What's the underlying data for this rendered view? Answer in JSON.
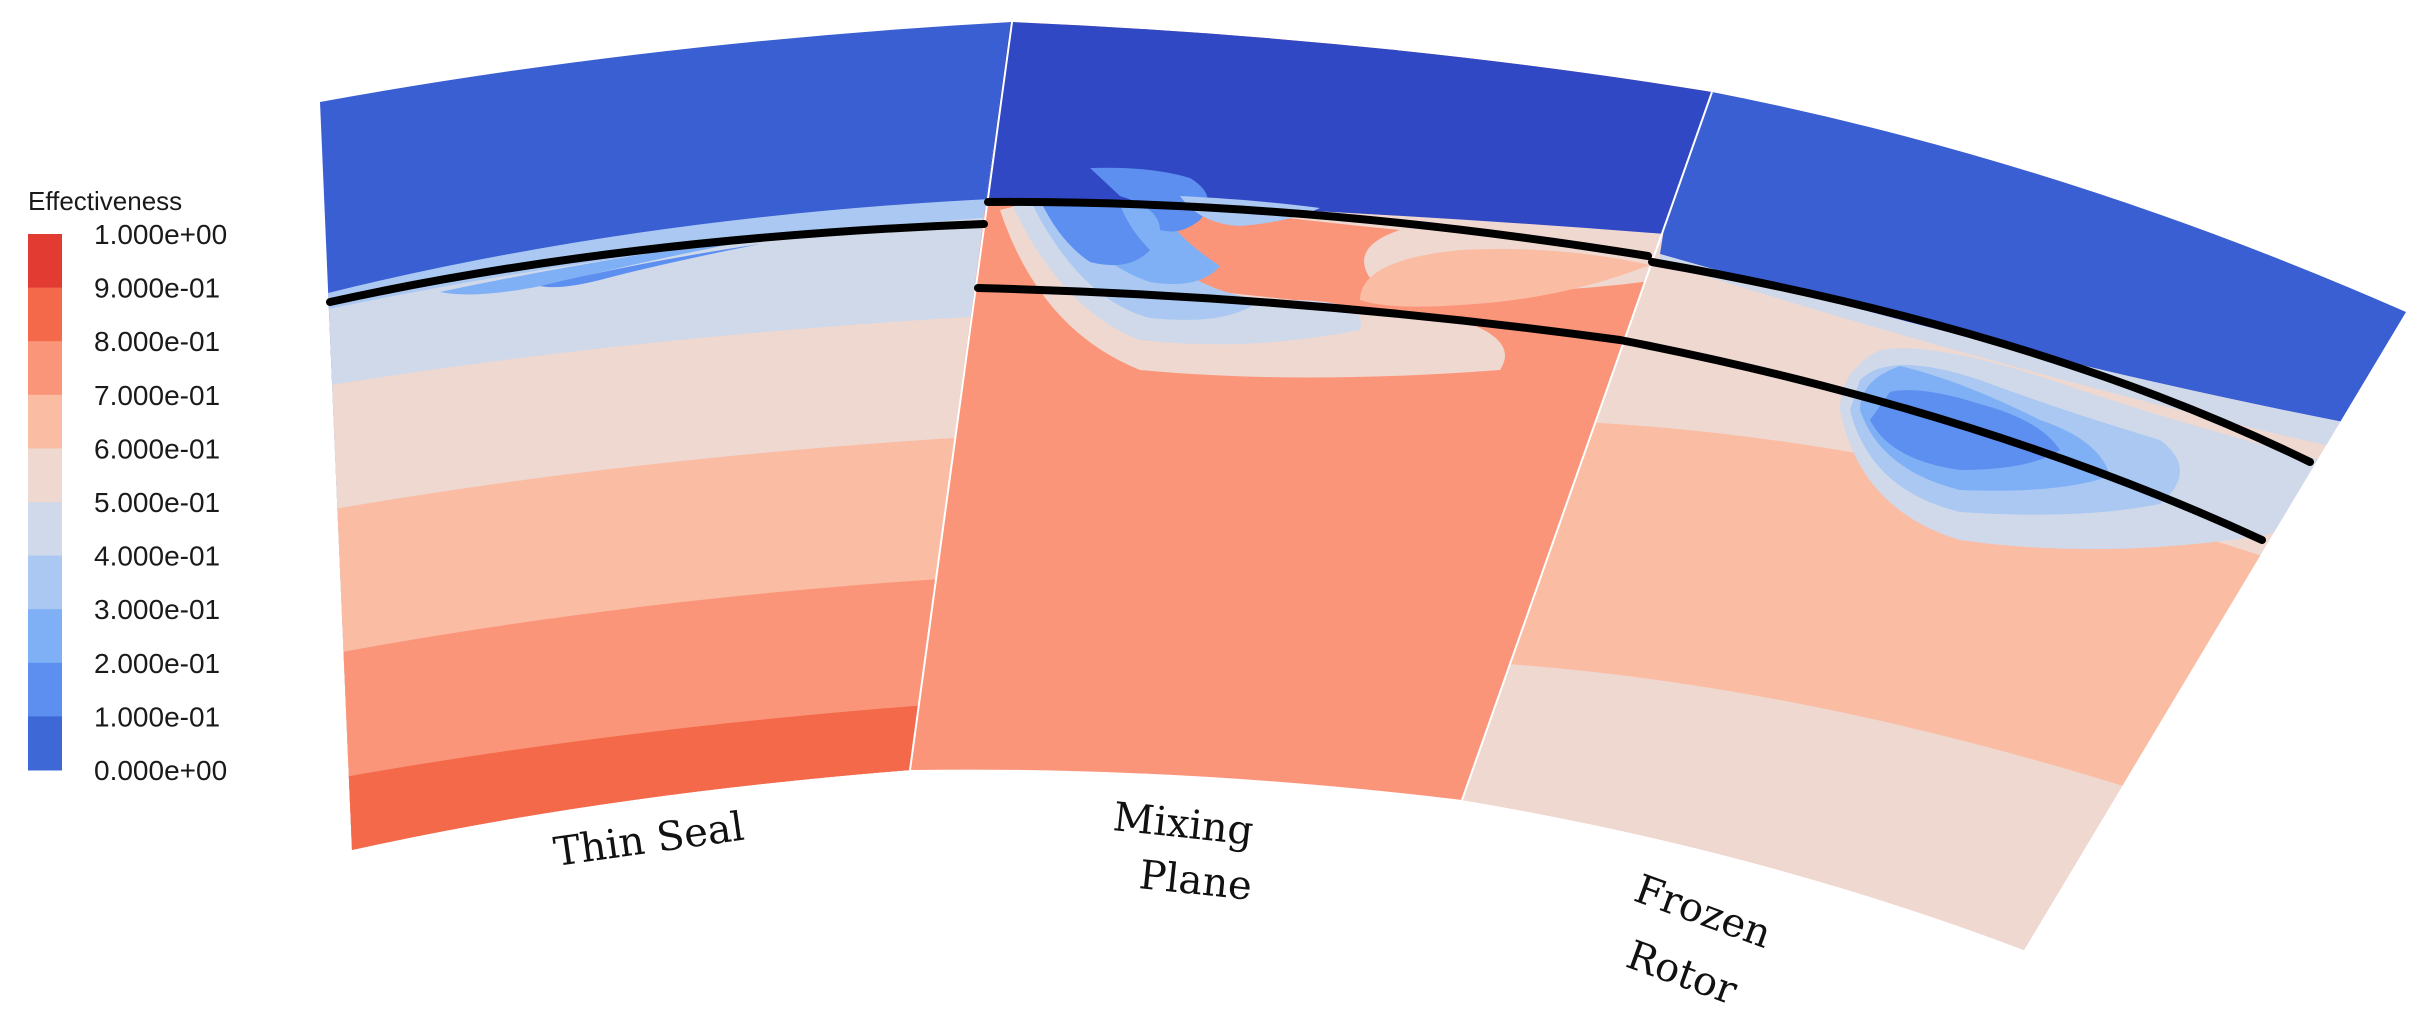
{
  "legend": {
    "title": "Effectiveness",
    "ticks": [
      "1.000e+00",
      "9.000e-01",
      "8.000e-01",
      "7.000e-01",
      "6.000e-01",
      "5.000e-01",
      "4.000e-01",
      "3.000e-01",
      "2.000e-01",
      "1.000e-01",
      "0.000e+00"
    ],
    "bands_top_to_bottom": [
      "#e23b32",
      "#f4694a",
      "#fb9579",
      "#fbbca4",
      "#efd8d0",
      "#cfd9ea",
      "#aac8f2",
      "#7fb0f5",
      "#5c8ff0",
      "#3e68d6"
    ]
  },
  "panels": [
    {
      "label_lines": [
        "Thin Seal"
      ]
    },
    {
      "label_lines": [
        "Mixing",
        "Plane"
      ]
    },
    {
      "label_lines": [
        "Frozen",
        "Rotor"
      ]
    }
  ],
  "colors": {
    "deep_blue": "#3a5fd3",
    "dark_blue": "#3048c4",
    "line": "#000000"
  }
}
